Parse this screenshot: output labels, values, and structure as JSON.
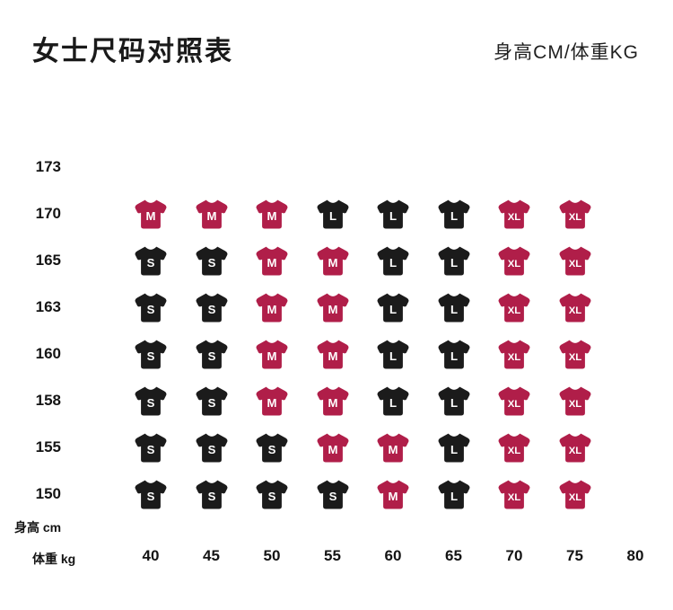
{
  "header": {
    "title": "女士尺码对照表",
    "unit_label": "身高CM/体重KG"
  },
  "chart_data": {
    "type": "heatmap",
    "title": "女士尺码对照表",
    "subtitle": "身高CM/体重KG",
    "ylabel": "身高 cm",
    "xlabel": "体重 kg",
    "x_ticks": [
      40,
      45,
      50,
      55,
      60,
      65,
      70,
      75,
      80
    ],
    "y_ticks": [
      173,
      170,
      165,
      163,
      160,
      158,
      155,
      150
    ],
    "legend_position": "none",
    "grid": false,
    "size_colors": {
      "S": "#1b1b1b",
      "M": "#b01e49",
      "L": "#1b1b1b",
      "XL": "#b01e49"
    },
    "badge_text_color": "#ffffff",
    "rows": [
      {
        "height": 173,
        "sizes": [
          null,
          null,
          null,
          null,
          null,
          null,
          null,
          null
        ]
      },
      {
        "height": 170,
        "sizes": [
          "M",
          "M",
          "M",
          "L",
          "L",
          "L",
          "XL",
          "XL"
        ]
      },
      {
        "height": 165,
        "sizes": [
          "S",
          "S",
          "M",
          "M",
          "L",
          "L",
          "XL",
          "XL"
        ]
      },
      {
        "height": 163,
        "sizes": [
          "S",
          "S",
          "M",
          "M",
          "L",
          "L",
          "XL",
          "XL"
        ]
      },
      {
        "height": 160,
        "sizes": [
          "S",
          "S",
          "M",
          "M",
          "L",
          "L",
          "XL",
          "XL"
        ]
      },
      {
        "height": 158,
        "sizes": [
          "S",
          "S",
          "M",
          "M",
          "L",
          "L",
          "XL",
          "XL"
        ]
      },
      {
        "height": 155,
        "sizes": [
          "S",
          "S",
          "S",
          "M",
          "M",
          "L",
          "XL",
          "XL"
        ]
      },
      {
        "height": 150,
        "sizes": [
          "S",
          "S",
          "S",
          "S",
          "M",
          "L",
          "XL",
          "XL"
        ]
      }
    ]
  }
}
